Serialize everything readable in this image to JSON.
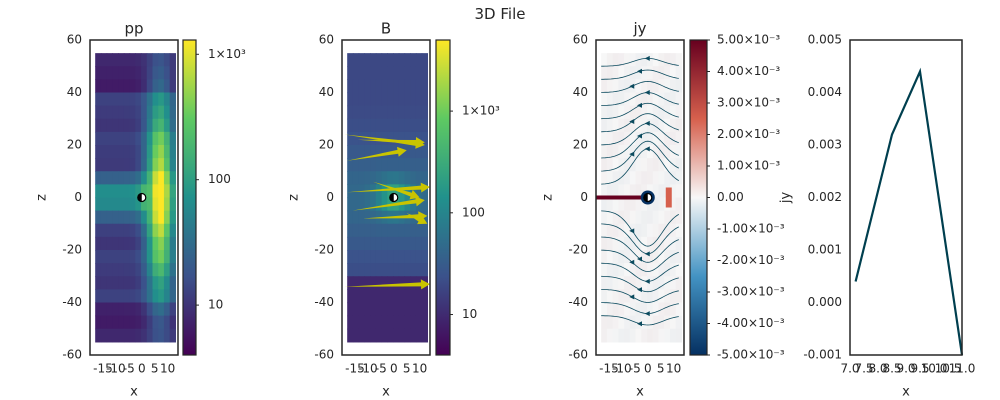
{
  "figure_title": "3D File",
  "colors": {
    "frame": "#262626",
    "viridis_low": "#440154",
    "viridis_mid": "#21918c",
    "viridis_high": "#fde725",
    "quiver": "#c9c400",
    "stream": "#0b4a5e",
    "line": "#003f4f",
    "rdbu_low": "#053061",
    "rdbu_mid": "#f7f7f7",
    "rdbu_high": "#67001f"
  },
  "chart_data": [
    {
      "type": "heatmap",
      "title": "pp",
      "xlabel": "x",
      "ylabel": "z",
      "xlim": [
        -20,
        14
      ],
      "ylim": [
        -60,
        60
      ],
      "x_ticks": [
        "-15",
        "-10",
        "-5",
        "0",
        "5",
        "10"
      ],
      "y_ticks": [
        "-60",
        "-40",
        "-20",
        "0",
        "20",
        "40",
        "60"
      ],
      "colorbar": {
        "scale": "log",
        "range": [
          4,
          1300
        ],
        "ticks": [
          "10",
          "100",
          "1×10³"
        ]
      }
    },
    {
      "type": "heatmap",
      "title": "B",
      "xlabel": "x",
      "ylabel": "z",
      "xlim": [
        -20,
        14
      ],
      "ylim": [
        -60,
        60
      ],
      "x_ticks": [
        "-15",
        "-10",
        "-5",
        "0",
        "5",
        "10"
      ],
      "y_ticks": [
        "-60",
        "-40",
        "-20",
        "0",
        "20",
        "40",
        "60"
      ],
      "colorbar": {
        "scale": "log",
        "range": [
          4,
          5000
        ],
        "ticks": [
          "10",
          "100",
          "1×10³"
        ]
      }
    },
    {
      "type": "heatmap",
      "title": "jy",
      "xlabel": "x",
      "ylabel": "z",
      "xlim": [
        -20,
        14
      ],
      "ylim": [
        -60,
        60
      ],
      "x_ticks": [
        "-15",
        "-10",
        "-5",
        "0",
        "5",
        "10"
      ],
      "y_ticks": [
        "-60",
        "-40",
        "-20",
        "0",
        "20",
        "40",
        "60"
      ],
      "colorbar": {
        "scale": "linear",
        "range": [
          -0.005,
          0.005
        ],
        "ticks": [
          "5.00×10⁻³",
          "4.00×10⁻³",
          "3.00×10⁻³",
          "2.00×10⁻³",
          "1.00×10⁻³",
          "0.00",
          "-1.00×10⁻³",
          "-2.00×10⁻³",
          "-3.00×10⁻³",
          "-4.00×10⁻³",
          "-5.00×10⁻³"
        ]
      }
    },
    {
      "type": "line",
      "title": "",
      "xlabel": "x",
      "ylabel": "jy",
      "xlim": [
        7.0,
        11.0
      ],
      "ylim": [
        -0.001,
        0.005
      ],
      "x_ticks": [
        "7.0",
        "7.5",
        "8.0",
        "8.5",
        "9.0",
        "9.5",
        "10.0",
        "10.5",
        "11.0"
      ],
      "y_ticks": [
        "0.005",
        "0.004",
        "0.003",
        "0.002",
        "0.001",
        "0.000",
        "-0.001"
      ],
      "series": [
        {
          "x": [
            7.2,
            8.5,
            9.5,
            11.0
          ],
          "y": [
            0.0004,
            0.0032,
            0.0044,
            -0.001
          ]
        }
      ]
    }
  ]
}
